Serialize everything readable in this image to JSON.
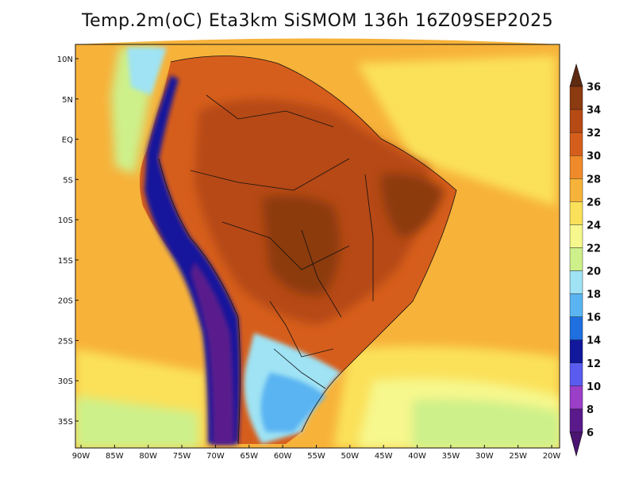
{
  "title": "Temp.2m(oC) Eta3km SiSMOM 136h 16Z09SEP2025",
  "lat_ticks": [
    {
      "label": "10N",
      "lat": 10
    },
    {
      "label": "5N",
      "lat": 5
    },
    {
      "label": "EQ",
      "lat": 0
    },
    {
      "label": "5S",
      "lat": -5
    },
    {
      "label": "10S",
      "lat": -10
    },
    {
      "label": "15S",
      "lat": -15
    },
    {
      "label": "20S",
      "lat": -20
    },
    {
      "label": "25S",
      "lat": -25
    },
    {
      "label": "30S",
      "lat": -30
    },
    {
      "label": "35S",
      "lat": -35
    }
  ],
  "lon_ticks": [
    {
      "label": "90W",
      "lon": -90
    },
    {
      "label": "85W",
      "lon": -85
    },
    {
      "label": "80W",
      "lon": -80
    },
    {
      "label": "75W",
      "lon": -75
    },
    {
      "label": "70W",
      "lon": -70
    },
    {
      "label": "65W",
      "lon": -65
    },
    {
      "label": "60W",
      "lon": -60
    },
    {
      "label": "55W",
      "lon": -55
    },
    {
      "label": "50W",
      "lon": -50
    },
    {
      "label": "45W",
      "lon": -45
    },
    {
      "label": "40W",
      "lon": -40
    },
    {
      "label": "35W",
      "lon": -35
    },
    {
      "label": "30W",
      "lon": -30
    },
    {
      "label": "25W",
      "lon": -25
    },
    {
      "label": "20W",
      "lon": -20
    }
  ],
  "colorbar": {
    "levels": [
      {
        "label": "36",
        "color": "#6b2a06"
      },
      {
        "label": "34",
        "color": "#8c3a0f"
      },
      {
        "label": "32",
        "color": "#b64a14"
      },
      {
        "label": "30",
        "color": "#d65e1c"
      },
      {
        "label": "28",
        "color": "#ef8a2a"
      },
      {
        "label": "26",
        "color": "#f7b23a"
      },
      {
        "label": "24",
        "color": "#fbe15a"
      },
      {
        "label": "22",
        "color": "#f6f78c"
      },
      {
        "label": "20",
        "color": "#cdf08a"
      },
      {
        "label": "18",
        "color": "#9fe3f4"
      },
      {
        "label": "16",
        "color": "#5ab4f2"
      },
      {
        "label": "14",
        "color": "#1f6fe0"
      },
      {
        "label": "12",
        "color": "#12189c"
      },
      {
        "label": "10",
        "color": "#5a5cf0"
      },
      {
        "label": "8",
        "color": "#9b3ec8"
      },
      {
        "label": "6",
        "color": "#5a1a8c"
      }
    ],
    "overflow_color": "#5e2a12",
    "underflow_color": "#4a1470"
  },
  "field_colors": {
    "ocean_warm": "#f7b23a",
    "ocean_mid": "#fbe15a",
    "ocean_cool": "#f6f78c",
    "land_hot": "#d65e1c",
    "land_very_hot": "#b64a14",
    "land_peak": "#8c3a0f",
    "andes_cold": "#12189c",
    "andes_coldest": "#5a1a8c",
    "south_cold": "#5ab4f2",
    "border_line": "#111111"
  }
}
